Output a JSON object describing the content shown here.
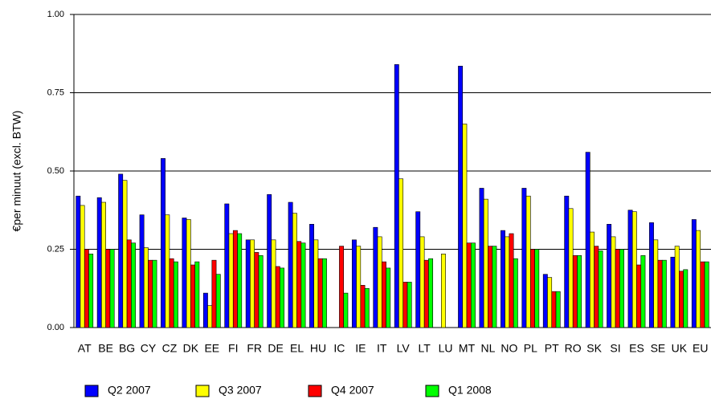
{
  "chart_data": {
    "type": "bar",
    "y_label": "€per minuut (excl. BTW)",
    "categories": [
      "AT",
      "BE",
      "BG",
      "CY",
      "CZ",
      "DK",
      "EE",
      "FI",
      "FR",
      "DE",
      "EL",
      "HU",
      "IC",
      "IE",
      "IT",
      "LV",
      "LT",
      "LU",
      "MT",
      "NL",
      "NO",
      "PL",
      "PT",
      "RO",
      "SK",
      "SI",
      "ES",
      "SE",
      "UK",
      "EU"
    ],
    "series": [
      {
        "name": "Q2 2007",
        "color": "#0000ff",
        "values": [
          0.42,
          0.415,
          0.49,
          0.36,
          0.54,
          0.35,
          0.11,
          0.395,
          0.28,
          0.425,
          0.4,
          0.33,
          null,
          0.28,
          0.32,
          0.84,
          0.37,
          null,
          0.835,
          0.445,
          0.31,
          0.445,
          0.17,
          0.42,
          0.56,
          0.33,
          0.375,
          0.335,
          0.225,
          0.345
        ]
      },
      {
        "name": "Q3 2007",
        "color": "#ffff00",
        "values": [
          0.39,
          0.4,
          0.47,
          0.255,
          0.36,
          0.345,
          0.07,
          0.3,
          0.28,
          0.28,
          0.365,
          0.28,
          null,
          0.26,
          0.29,
          0.475,
          0.29,
          0.235,
          0.65,
          0.41,
          0.29,
          0.42,
          0.16,
          0.38,
          0.305,
          0.29,
          0.37,
          0.28,
          0.26,
          0.31
        ]
      },
      {
        "name": "Q4 2007",
        "color": "#ff0000",
        "values": [
          0.25,
          0.25,
          0.28,
          0.215,
          0.22,
          0.2,
          0.215,
          0.31,
          0.24,
          0.195,
          0.275,
          0.22,
          0.26,
          0.135,
          0.21,
          0.145,
          0.215,
          null,
          0.27,
          0.26,
          0.3,
          0.25,
          0.115,
          0.23,
          0.26,
          0.25,
          0.2,
          0.215,
          0.18,
          0.21
        ]
      },
      {
        "name": "Q1 2008",
        "color": "#00ff00",
        "values": [
          0.235,
          0.25,
          0.27,
          0.215,
          0.21,
          0.21,
          0.17,
          0.3,
          0.23,
          0.19,
          0.27,
          0.22,
          0.11,
          0.125,
          0.19,
          0.145,
          0.22,
          null,
          0.27,
          0.26,
          0.22,
          0.25,
          0.115,
          0.23,
          0.245,
          0.25,
          0.23,
          0.215,
          0.185,
          0.21
        ]
      }
    ],
    "ylim": [
      0,
      1
    ],
    "yticks": [
      {
        "value": 0,
        "label": "0.00"
      },
      {
        "value": 0.25,
        "label": "0.25"
      },
      {
        "value": 0.5,
        "label": "0.50"
      },
      {
        "value": 0.75,
        "label": "0.75"
      },
      {
        "value": 1,
        "label": "1.00"
      }
    ],
    "grid": true
  }
}
